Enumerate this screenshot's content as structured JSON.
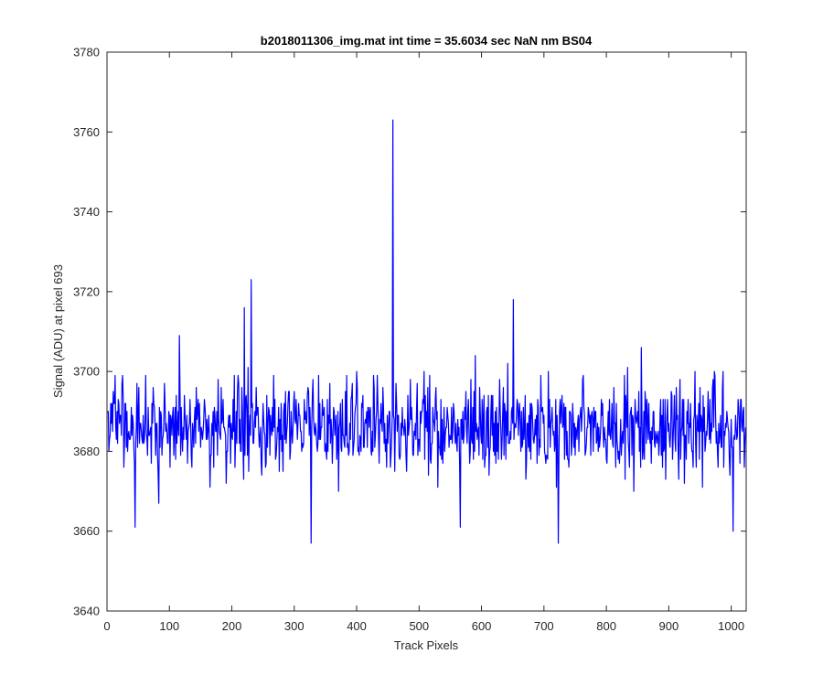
{
  "chart_data": {
    "type": "line",
    "title": "b2018011306_img.mat int time = 35.6034 sec  NaN nm BS04",
    "xlabel": "Track Pixels",
    "ylabel": "Signal (ADU) at pixel 693",
    "xlim": [
      0,
      1024
    ],
    "ylim": [
      3640,
      3780
    ],
    "xticks": [
      0,
      100,
      200,
      300,
      400,
      500,
      600,
      700,
      800,
      900,
      1000
    ],
    "yticks": [
      3640,
      3660,
      3680,
      3700,
      3720,
      3740,
      3760,
      3780
    ],
    "grid": false,
    "series_color": "#0000ff",
    "series": [
      {
        "n": 1024,
        "baseline": 3686,
        "noise_amplitude": 6,
        "notable_points": [
          {
            "x": 45,
            "y": 3661
          },
          {
            "x": 116,
            "y": 3709
          },
          {
            "x": 220,
            "y": 3716
          },
          {
            "x": 231,
            "y": 3723
          },
          {
            "x": 327,
            "y": 3657
          },
          {
            "x": 458,
            "y": 3763
          },
          {
            "x": 566,
            "y": 3661
          },
          {
            "x": 651,
            "y": 3718
          },
          {
            "x": 723,
            "y": 3657
          },
          {
            "x": 856,
            "y": 3706
          },
          {
            "x": 1003,
            "y": 3660
          }
        ]
      }
    ]
  }
}
